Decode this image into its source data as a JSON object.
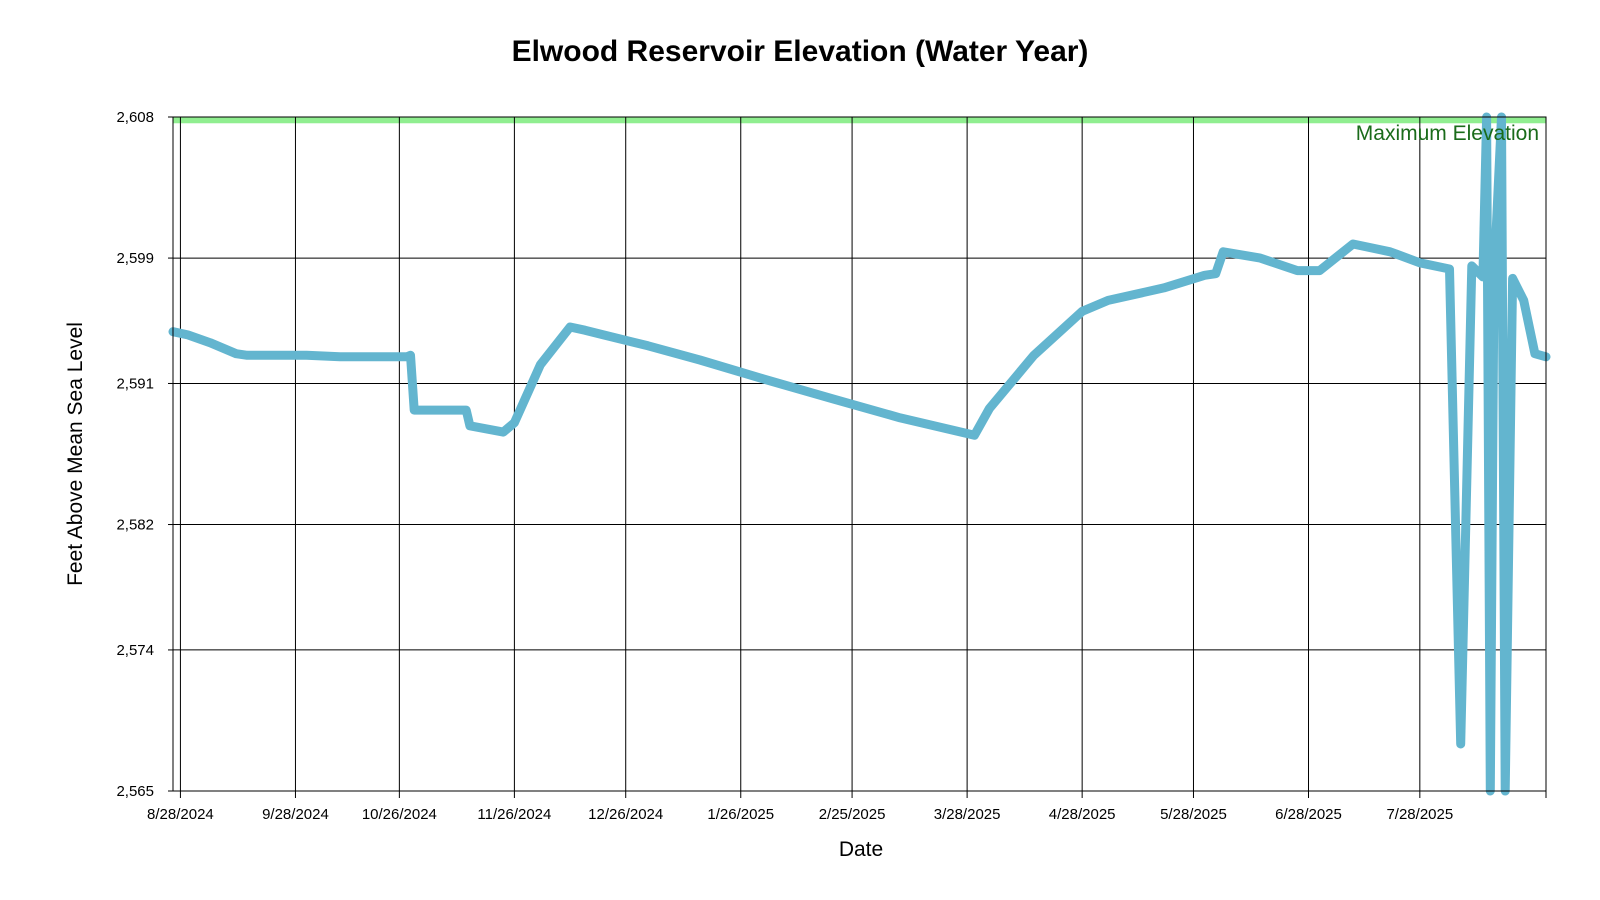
{
  "chart_data": {
    "type": "line",
    "title": "Elwood Reservoir Elevation (Water Year)",
    "xlabel": "Date",
    "ylabel": "Feet Above Mean Sea Level",
    "ylim": [
      2565,
      2608
    ],
    "yticks": [
      2565,
      2574,
      2582,
      2591,
      2599,
      2608
    ],
    "ytick_labels": [
      "2,565",
      "2,574",
      "2,582",
      "2,591",
      "2,599",
      "2,608"
    ],
    "xlim": [
      "2024-08-26",
      "2025-08-31"
    ],
    "xticks": [
      "2024-08-28",
      "2024-09-28",
      "2024-10-26",
      "2024-11-26",
      "2024-12-26",
      "2025-01-26",
      "2025-02-25",
      "2025-03-28",
      "2025-04-28",
      "2025-05-28",
      "2025-06-28",
      "2025-07-28"
    ],
    "xtick_labels": [
      "8/28/2024",
      "9/28/2024",
      "10/26/2024",
      "11/26/2024",
      "12/26/2024",
      "1/26/2025",
      "2/25/2025",
      "3/28/2025",
      "4/28/2025",
      "5/28/2025",
      "6/28/2025",
      "7/28/2025"
    ],
    "grid": true,
    "series_color": "#63b5cf",
    "reference_band": {
      "label": "Maximum Elevation",
      "y_range": [
        2607.6,
        2608
      ],
      "color": "#90ee90"
    },
    "series": [
      {
        "x": [
          "2024-08-26",
          "2024-08-30",
          "2024-09-05",
          "2024-09-12",
          "2024-09-15",
          "2024-10-01",
          "2024-10-10",
          "2024-10-28",
          "2024-10-29",
          "2024-10-30",
          "2024-11-01",
          "2024-11-13",
          "2024-11-14",
          "2024-11-23",
          "2024-11-26",
          "2024-12-03",
          "2024-12-11",
          "2024-12-15",
          "2024-12-20",
          "2025-01-01",
          "2025-01-15",
          "2025-02-01",
          "2025-02-20",
          "2025-03-10",
          "2025-03-30",
          "2025-04-03",
          "2025-04-15",
          "2025-04-28",
          "2025-05-05",
          "2025-05-20",
          "2025-05-31",
          "2025-06-03",
          "2025-06-05",
          "2025-06-15",
          "2025-06-25",
          "2025-07-01",
          "2025-07-10",
          "2025-07-20",
          "2025-07-28",
          "2025-08-05",
          "2025-08-08",
          "2025-08-11",
          "2025-08-14",
          "2025-08-15",
          "2025-08-16",
          "2025-08-17",
          "2025-08-19",
          "2025-08-20",
          "2025-08-22",
          "2025-08-25",
          "2025-08-28",
          "2025-08-31"
        ],
        "y": [
          2594.3,
          2594.1,
          2593.6,
          2592.9,
          2592.8,
          2592.8,
          2592.7,
          2592.7,
          2592.8,
          2589.3,
          2589.3,
          2589.3,
          2588.3,
          2587.9,
          2588.5,
          2592.2,
          2594.6,
          2594.4,
          2594.1,
          2593.4,
          2592.5,
          2591.3,
          2590.0,
          2588.8,
          2587.7,
          2589.4,
          2592.8,
          2595.6,
          2596.3,
          2597.1,
          2597.9,
          2598.0,
          2599.4,
          2599.0,
          2598.2,
          2598.2,
          2599.9,
          2599.4,
          2598.7,
          2598.3,
          2568.0,
          2598.5,
          2597.8,
          2608.0,
          2565.0,
          2597.8,
          2608.0,
          2565.0,
          2597.7,
          2596.3,
          2592.9,
          2592.7
        ]
      }
    ]
  }
}
